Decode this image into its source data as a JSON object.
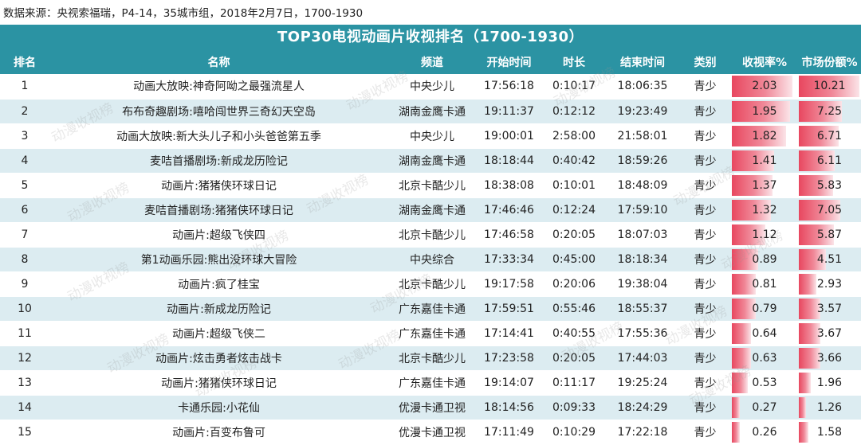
{
  "source": "数据来源：央视索福瑞，P4-14，35城市组，2018年2月7日，1700-1930",
  "title": "TOP30电视动画片收视排名（1700-1930）",
  "watermark": "动漫收视榜",
  "columns": [
    "排名",
    "名称",
    "频道",
    "开始时间",
    "时长",
    "结束时间",
    "类别",
    "收视率%",
    "市场份额%"
  ],
  "rows": [
    {
      "rank": "1",
      "name": "动画大放映:神奇阿呦之最强流星人",
      "channel": "中央少儿",
      "start": "17:56:18",
      "duration": "0:10:17",
      "end": "18:06:35",
      "category": "青少",
      "rating": "2.03",
      "share": "10.21"
    },
    {
      "rank": "2",
      "name": "布布奇趣剧场:嘻哈闯世界三奇幻天空岛",
      "channel": "湖南金鹰卡通",
      "start": "19:11:37",
      "duration": "0:12:12",
      "end": "19:23:49",
      "category": "青少",
      "rating": "1.95",
      "share": "7.25"
    },
    {
      "rank": "3",
      "name": "动画大放映:新大头儿子和小头爸爸第五季",
      "channel": "中央少儿",
      "start": "19:00:01",
      "duration": "2:58:00",
      "end": "21:58:01",
      "category": "青少",
      "rating": "1.82",
      "share": "6.71"
    },
    {
      "rank": "4",
      "name": "麦咭首播剧场:新成龙历险记",
      "channel": "湖南金鹰卡通",
      "start": "18:18:44",
      "duration": "0:40:42",
      "end": "18:59:26",
      "category": "青少",
      "rating": "1.41",
      "share": "6.11"
    },
    {
      "rank": "5",
      "name": "动画片:猪猪侠环球日记",
      "channel": "北京卡酷少儿",
      "start": "18:38:08",
      "duration": "0:10:01",
      "end": "18:48:09",
      "category": "青少",
      "rating": "1.37",
      "share": "5.83"
    },
    {
      "rank": "6",
      "name": "麦咭首播剧场:猪猪侠环球日记",
      "channel": "湖南金鹰卡通",
      "start": "17:46:46",
      "duration": "0:12:24",
      "end": "17:59:10",
      "category": "青少",
      "rating": "1.32",
      "share": "7.05"
    },
    {
      "rank": "7",
      "name": "动画片:超级飞侠四",
      "channel": "北京卡酷少儿",
      "start": "17:46:58",
      "duration": "0:20:05",
      "end": "18:07:03",
      "category": "青少",
      "rating": "1.12",
      "share": "5.87"
    },
    {
      "rank": "8",
      "name": "第1动画乐园:熊出没环球大冒险",
      "channel": "中央综合",
      "start": "17:33:34",
      "duration": "0:45:00",
      "end": "18:18:34",
      "category": "青少",
      "rating": "0.89",
      "share": "4.51"
    },
    {
      "rank": "9",
      "name": "动画片:疯了桂宝",
      "channel": "北京卡酷少儿",
      "start": "19:17:58",
      "duration": "0:20:06",
      "end": "19:38:04",
      "category": "青少",
      "rating": "0.81",
      "share": "2.93"
    },
    {
      "rank": "10",
      "name": "动画片:新成龙历险记",
      "channel": "广东嘉佳卡通",
      "start": "17:59:51",
      "duration": "0:55:46",
      "end": "18:55:37",
      "category": "青少",
      "rating": "0.79",
      "share": "3.57"
    },
    {
      "rank": "11",
      "name": "动画片:超级飞侠二",
      "channel": "广东嘉佳卡通",
      "start": "17:14:41",
      "duration": "0:40:55",
      "end": "17:55:36",
      "category": "青少",
      "rating": "0.64",
      "share": "3.67"
    },
    {
      "rank": "12",
      "name": "动画片:炫击勇者炫击战卡",
      "channel": "北京卡酷少儿",
      "start": "17:23:58",
      "duration": "0:20:05",
      "end": "17:44:03",
      "category": "青少",
      "rating": "0.63",
      "share": "3.66"
    },
    {
      "rank": "13",
      "name": "动画片:猪猪侠环球日记",
      "channel": "广东嘉佳卡通",
      "start": "19:14:07",
      "duration": "0:11:17",
      "end": "19:25:24",
      "category": "青少",
      "rating": "0.53",
      "share": "1.96"
    },
    {
      "rank": "14",
      "name": "卡通乐园:小花仙",
      "channel": "优漫卡通卫视",
      "start": "18:14:56",
      "duration": "0:09:33",
      "end": "18:24:29",
      "category": "青少",
      "rating": "0.27",
      "share": "1.26"
    },
    {
      "rank": "15",
      "name": "动画片:百变布鲁可",
      "channel": "优漫卡通卫视",
      "start": "17:11:49",
      "duration": "0:10:29",
      "end": "17:22:18",
      "category": "青少",
      "rating": "0.26",
      "share": "1.58"
    }
  ],
  "bar_scale": {
    "rating_max": 2.03,
    "share_max": 10.21
  },
  "colors": {
    "header": "#2b93a3",
    "row_alt": "#dcecf1",
    "bar": "#e8475f"
  }
}
